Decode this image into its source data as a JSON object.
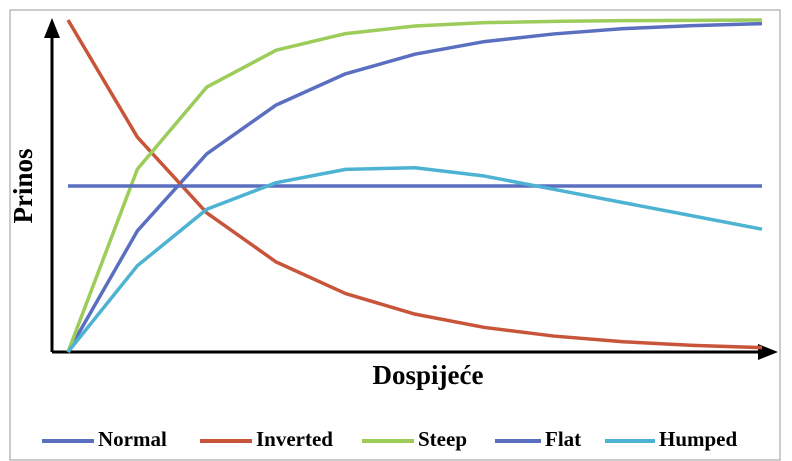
{
  "chart_data": {
    "type": "line",
    "x_label": "Dospijeće",
    "y_label": "Prinos",
    "x": [
      0,
      10,
      20,
      30,
      40,
      50,
      60,
      70,
      80,
      90,
      100
    ],
    "xlim": [
      0,
      100
    ],
    "ylim": [
      0,
      100
    ],
    "grid": false,
    "legend": "bottom",
    "series": [
      {
        "name": "Normal",
        "color": "#5b6fc0",
        "values": [
          0,
          36.5,
          59.7,
          74.4,
          83.8,
          89.7,
          93.5,
          95.8,
          97.4,
          98.3,
          98.9
        ]
      },
      {
        "name": "Inverted",
        "color": "#c8553a",
        "values": [
          100,
          64.7,
          41.9,
          27.1,
          17.6,
          11.4,
          7.4,
          4.8,
          3.1,
          2.0,
          1.3
        ]
      },
      {
        "name": "Steep",
        "color": "#9ccc5a",
        "values": [
          0,
          55.1,
          79.8,
          90.9,
          95.9,
          98.2,
          99.2,
          99.6,
          99.8,
          99.9,
          100
        ]
      },
      {
        "name": "Flat",
        "color": "#5b6fc0",
        "values": [
          50,
          50,
          50,
          50,
          50,
          50,
          50,
          50,
          50,
          50,
          50
        ]
      },
      {
        "name": "Humped",
        "color": "#4eb3d3",
        "values": [
          0,
          26,
          43,
          51,
          55,
          55.5,
          53,
          49,
          45,
          41,
          37
        ]
      }
    ]
  }
}
